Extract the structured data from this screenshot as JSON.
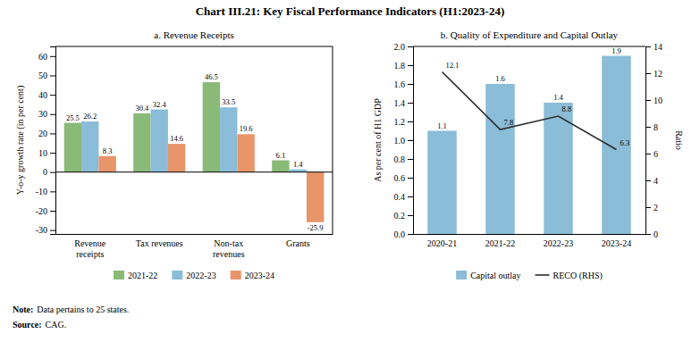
{
  "title": "Chart III.21: Key Fiscal Performance Indicators (H1:2023-24)",
  "annotations": [
    [
      "Note:",
      "Data pertains to 25 states."
    ],
    [
      "Source:",
      "CAG."
    ]
  ],
  "chart_data": [
    {
      "type": "bar",
      "title": "a. Revenue Receipts",
      "categories": [
        "Revenue\nreceipts",
        "Tax revenues",
        "Non-tax\nrevenues",
        "Grants"
      ],
      "series": [
        {
          "name": "2021-22",
          "color": "#8aba78",
          "values": [
            25.5,
            30.4,
            46.5,
            6.1
          ]
        },
        {
          "name": "2022-23",
          "color": "#8bbcd8",
          "values": [
            26.2,
            32.4,
            33.5,
            1.4
          ]
        },
        {
          "name": "2023-24",
          "color": "#e8956a",
          "values": [
            8.3,
            14.6,
            19.6,
            -25.9
          ]
        }
      ],
      "ylabel": "Y-o-y growth rate (in per cent)",
      "ylim": [
        -32,
        65
      ],
      "yticks": [
        -30,
        -20,
        -10,
        0,
        10,
        20,
        30,
        40,
        50,
        60
      ],
      "grid": false,
      "legend": "bottom",
      "data_labels": true
    },
    {
      "type": "bar",
      "title": "b. Quality of Expenditure and Capital Outlay",
      "categories": [
        "2020-21",
        "2021-22",
        "2022-23",
        "2023-24"
      ],
      "series": [
        {
          "name": "Capital outlay",
          "type": "bar",
          "color": "#8bbcd8",
          "values": [
            1.1,
            1.6,
            1.4,
            1.9
          ]
        },
        {
          "name": "RECO (RHS)",
          "type": "line",
          "color": "#2d2d2d",
          "axis": "y2",
          "values": [
            12.1,
            7.8,
            8.8,
            6.3
          ]
        }
      ],
      "ylabel": "As per cent of H1 GDP",
      "y2label": "Ratio",
      "ylim": [
        0,
        2.0
      ],
      "yticks": [
        {
          "value": 0,
          "label": "0.0"
        },
        0.2,
        0.4,
        0.6,
        0.8,
        {
          "value": 1,
          "label": "1.0"
        },
        1.2,
        1.4,
        1.6,
        1.8,
        {
          "value": 2,
          "label": "2.0"
        }
      ],
      "y2lim": [
        0,
        14
      ],
      "y2ticks": [
        0,
        2,
        4,
        6,
        8,
        10,
        12,
        14
      ],
      "grid": false,
      "legend": "bottom",
      "data_labels": true
    }
  ]
}
